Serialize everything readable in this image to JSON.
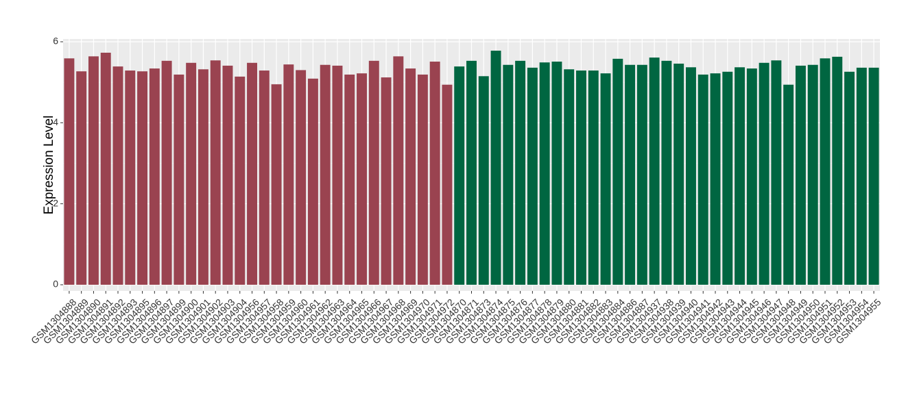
{
  "chart_data": {
    "type": "bar",
    "y_label": "Expression Level",
    "categories": [
      "GSM1304888",
      "GSM1304889",
      "GSM1304890",
      "GSM1304891",
      "GSM1304892",
      "GSM1304893",
      "GSM1304895",
      "GSM1304896",
      "GSM1304897",
      "GSM1304899",
      "GSM1304900",
      "GSM1304901",
      "GSM1304902",
      "GSM1304903",
      "GSM1304904",
      "GSM1304956",
      "GSM1304957",
      "GSM1304958",
      "GSM1304959",
      "GSM1304960",
      "GSM1304961",
      "GSM1304962",
      "GSM1304963",
      "GSM1304964",
      "GSM1304965",
      "GSM1304966",
      "GSM1304967",
      "GSM1304968",
      "GSM1304969",
      "GSM1304970",
      "GSM1304971",
      "GSM1304972",
      "GSM1304870",
      "GSM1304871",
      "GSM1304873",
      "GSM1304874",
      "GSM1304875",
      "GSM1304876",
      "GSM1304877",
      "GSM1304878",
      "GSM1304879",
      "GSM1304880",
      "GSM1304881",
      "GSM1304882",
      "GSM1304883",
      "GSM1304884",
      "GSM1304886",
      "GSM1304887",
      "GSM1304937",
      "GSM1304938",
      "GSM1304939",
      "GSM1304940",
      "GSM1304941",
      "GSM1304942",
      "GSM1304943",
      "GSM1304944",
      "GSM1304945",
      "GSM1304946",
      "GSM1304947",
      "GSM1304948",
      "GSM1304949",
      "GSM1304950",
      "GSM1304951",
      "GSM1304952",
      "GSM1304953",
      "GSM1304954",
      "GSM1304955"
    ],
    "values": [
      5.59,
      5.27,
      5.64,
      5.73,
      5.39,
      5.29,
      5.27,
      5.34,
      5.53,
      5.19,
      5.48,
      5.32,
      5.54,
      5.41,
      5.14,
      5.48,
      5.29,
      4.95,
      5.44,
      5.3,
      5.09,
      5.43,
      5.41,
      5.19,
      5.22,
      5.53,
      5.12,
      5.64,
      5.34,
      5.19,
      5.51,
      4.94,
      5.39,
      5.53,
      5.15,
      5.78,
      5.43,
      5.53,
      5.36,
      5.49,
      5.51,
      5.32,
      5.29,
      5.29,
      5.22,
      5.58,
      5.43,
      5.43,
      5.61,
      5.53,
      5.46,
      5.37,
      5.19,
      5.22,
      5.26,
      5.37,
      5.34,
      5.48,
      5.54,
      4.94,
      5.41,
      5.43,
      5.59,
      5.63,
      5.26,
      5.36,
      5.36
    ],
    "colors": [
      "#9a4350",
      "#9a4350",
      "#9a4350",
      "#9a4350",
      "#9a4350",
      "#9a4350",
      "#9a4350",
      "#9a4350",
      "#9a4350",
      "#9a4350",
      "#9a4350",
      "#9a4350",
      "#9a4350",
      "#9a4350",
      "#9a4350",
      "#9a4350",
      "#9a4350",
      "#9a4350",
      "#9a4350",
      "#9a4350",
      "#9a4350",
      "#9a4350",
      "#9a4350",
      "#9a4350",
      "#9a4350",
      "#9a4350",
      "#9a4350",
      "#9a4350",
      "#9a4350",
      "#9a4350",
      "#9a4350",
      "#9a4350",
      "#006641",
      "#006641",
      "#006641",
      "#006641",
      "#006641",
      "#006641",
      "#006641",
      "#006641",
      "#006641",
      "#006641",
      "#006641",
      "#006641",
      "#006641",
      "#006641",
      "#006641",
      "#006641",
      "#006641",
      "#006641",
      "#006641",
      "#006641",
      "#006641",
      "#006641",
      "#006641",
      "#006641",
      "#006641",
      "#006641",
      "#006641",
      "#006641",
      "#006641",
      "#006641",
      "#006641",
      "#006641",
      "#006641",
      "#006641",
      "#006641"
    ],
    "ylim": [
      -0.152,
      6.068
    ],
    "yticks": [
      0,
      2,
      4,
      6
    ],
    "grid": true
  }
}
